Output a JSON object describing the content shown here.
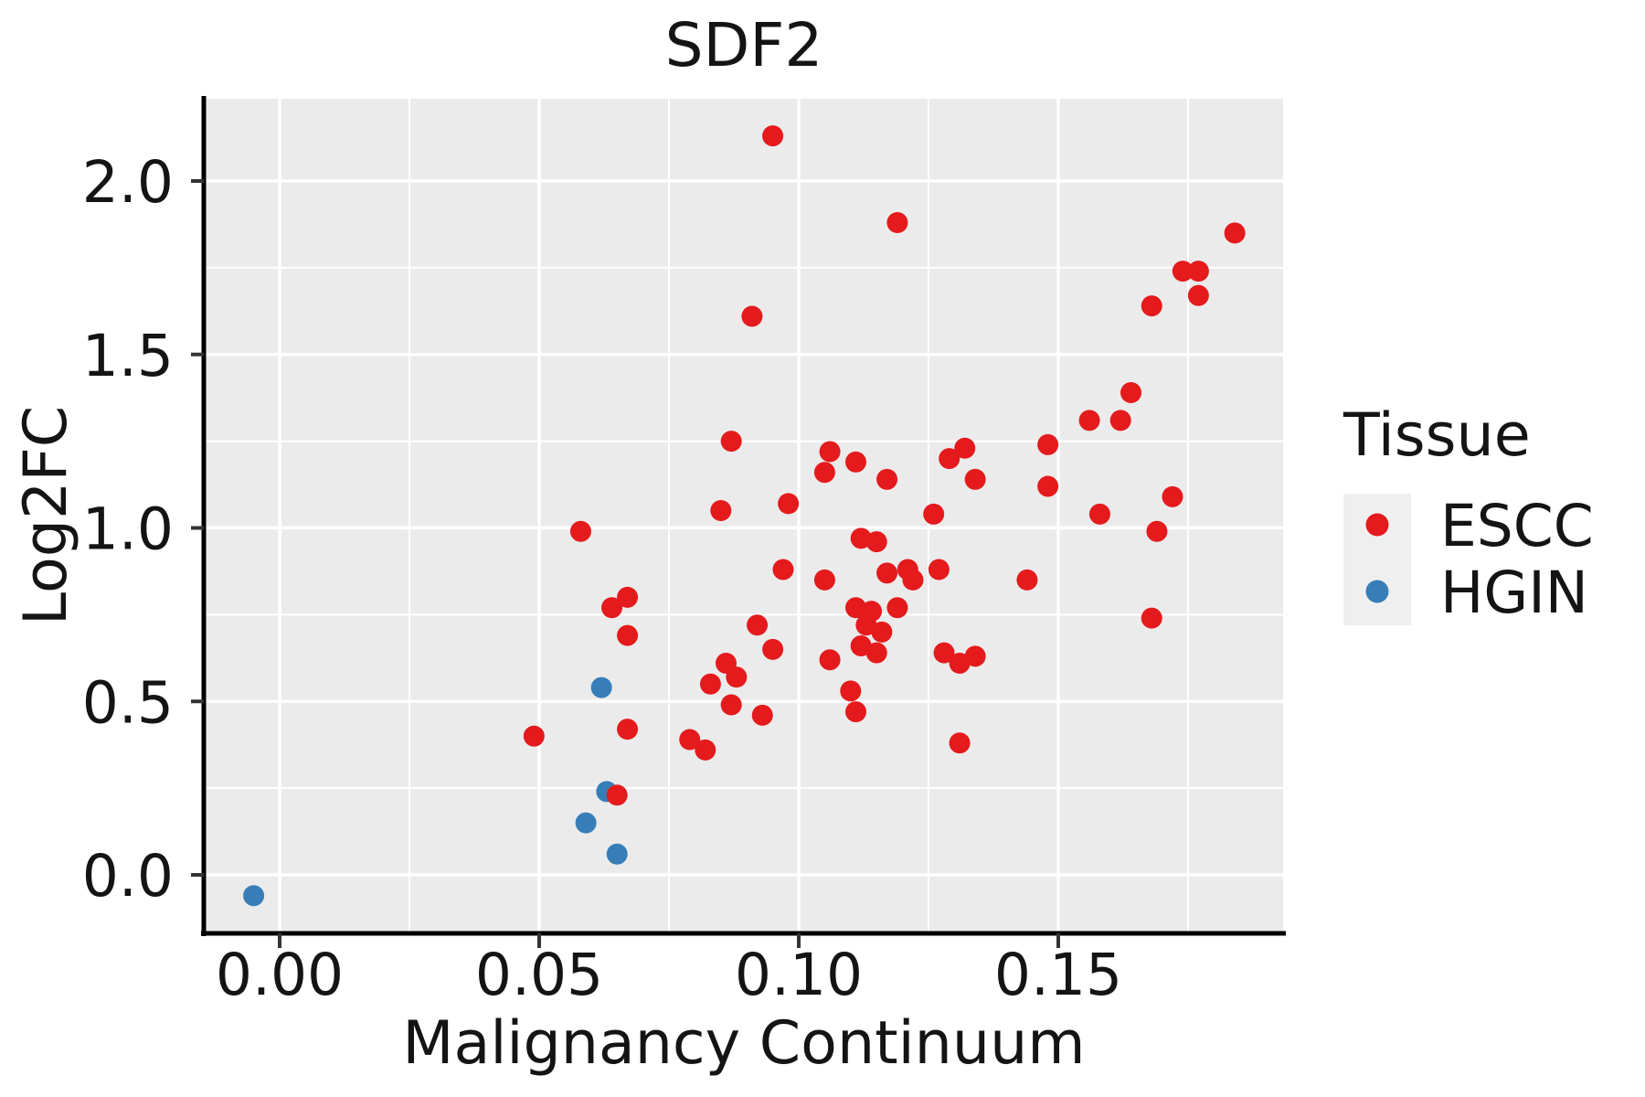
{
  "chart_data": {
    "type": "scatter",
    "title": "SDF2",
    "xlabel": "Malignancy Continuum",
    "ylabel": "Log2FC",
    "xlim": [
      -0.0146,
      0.1933
    ],
    "ylim": [
      -0.166,
      2.237
    ],
    "grid": {
      "on": true,
      "x_major": [
        0.0,
        0.05,
        0.1,
        0.15
      ],
      "x_minor": [
        0.025,
        0.075,
        0.125,
        0.175
      ],
      "y_major": [
        0.0,
        0.5,
        1.0,
        1.5,
        2.0
      ],
      "y_minor": [
        0.25,
        0.75,
        1.25,
        1.75
      ]
    },
    "x_ticks": [
      {
        "value": 0.0,
        "label": "0.00"
      },
      {
        "value": 0.05,
        "label": "0.05"
      },
      {
        "value": 0.1,
        "label": "0.10"
      },
      {
        "value": 0.15,
        "label": "0.15"
      }
    ],
    "y_ticks": [
      {
        "value": 0.0,
        "label": "0.0"
      },
      {
        "value": 0.5,
        "label": "0.5"
      },
      {
        "value": 1.0,
        "label": "1.0"
      },
      {
        "value": 1.5,
        "label": "1.5"
      },
      {
        "value": 2.0,
        "label": "2.0"
      }
    ],
    "legend": {
      "title": "Tissue",
      "position": "right",
      "entries": [
        {
          "label": "ESCC",
          "color": "#E41A1C"
        },
        {
          "label": "HGIN",
          "color": "#377EB8"
        }
      ]
    },
    "series": [
      {
        "name": "ESCC",
        "color": "#E41A1C",
        "points": [
          [
            0.095,
            2.13
          ],
          [
            0.119,
            1.88
          ],
          [
            0.184,
            1.85
          ],
          [
            0.174,
            1.74
          ],
          [
            0.177,
            1.74
          ],
          [
            0.177,
            1.67
          ],
          [
            0.168,
            1.64
          ],
          [
            0.091,
            1.61
          ],
          [
            0.164,
            1.39
          ],
          [
            0.156,
            1.31
          ],
          [
            0.162,
            1.31
          ],
          [
            0.087,
            1.25
          ],
          [
            0.148,
            1.24
          ],
          [
            0.132,
            1.23
          ],
          [
            0.106,
            1.22
          ],
          [
            0.129,
            1.2
          ],
          [
            0.111,
            1.19
          ],
          [
            0.105,
            1.16
          ],
          [
            0.117,
            1.14
          ],
          [
            0.134,
            1.14
          ],
          [
            0.148,
            1.12
          ],
          [
            0.172,
            1.09
          ],
          [
            0.098,
            1.07
          ],
          [
            0.085,
            1.05
          ],
          [
            0.126,
            1.04
          ],
          [
            0.158,
            1.04
          ],
          [
            0.058,
            0.99
          ],
          [
            0.169,
            0.99
          ],
          [
            0.112,
            0.97
          ],
          [
            0.115,
            0.96
          ],
          [
            0.097,
            0.88
          ],
          [
            0.121,
            0.88
          ],
          [
            0.127,
            0.88
          ],
          [
            0.117,
            0.87
          ],
          [
            0.105,
            0.85
          ],
          [
            0.122,
            0.85
          ],
          [
            0.144,
            0.85
          ],
          [
            0.067,
            0.8
          ],
          [
            0.064,
            0.77
          ],
          [
            0.111,
            0.77
          ],
          [
            0.119,
            0.77
          ],
          [
            0.114,
            0.76
          ],
          [
            0.168,
            0.74
          ],
          [
            0.092,
            0.72
          ],
          [
            0.113,
            0.72
          ],
          [
            0.116,
            0.7
          ],
          [
            0.067,
            0.69
          ],
          [
            0.112,
            0.66
          ],
          [
            0.095,
            0.65
          ],
          [
            0.115,
            0.64
          ],
          [
            0.128,
            0.64
          ],
          [
            0.134,
            0.63
          ],
          [
            0.106,
            0.62
          ],
          [
            0.086,
            0.61
          ],
          [
            0.131,
            0.61
          ],
          [
            0.088,
            0.57
          ],
          [
            0.083,
            0.55
          ],
          [
            0.11,
            0.53
          ],
          [
            0.087,
            0.49
          ],
          [
            0.111,
            0.47
          ],
          [
            0.093,
            0.46
          ],
          [
            0.067,
            0.42
          ],
          [
            0.049,
            0.4
          ],
          [
            0.079,
            0.39
          ],
          [
            0.131,
            0.38
          ],
          [
            0.082,
            0.36
          ],
          [
            0.065,
            0.23
          ]
        ]
      },
      {
        "name": "HGIN",
        "color": "#377EB8",
        "points": [
          [
            -0.005,
            -0.06
          ],
          [
            0.059,
            0.15
          ],
          [
            0.063,
            0.24
          ],
          [
            0.062,
            0.54
          ],
          [
            0.065,
            0.06
          ]
        ]
      }
    ]
  },
  "colors": {
    "background": "#FFFFFF",
    "panel_bg": "#EBEBEB",
    "grid": "#FFFFFF",
    "axis_line": "#000000",
    "tick_mark": "#333333",
    "text": "#141414",
    "legend_key_bg": "#EFEFEF"
  }
}
